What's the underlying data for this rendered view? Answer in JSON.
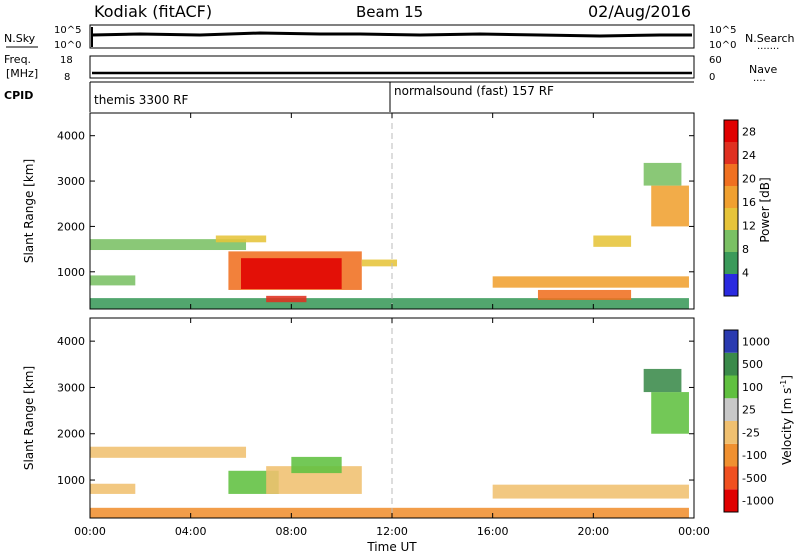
{
  "header": {
    "station": "Kodiak  (fitACF)",
    "beam": "Beam 15",
    "date": "02/Aug/2016"
  },
  "panels": {
    "nsky": {
      "left_label": "N.Sky",
      "ticks": [
        "10^5",
        "10^0"
      ],
      "right_ticks": [
        "10^5",
        "10^0"
      ],
      "right_label": "N.Search"
    },
    "freq": {
      "left_label_top": "Freq.",
      "left_label_bottom": "[MHz]",
      "ticks": [
        "18",
        "8"
      ],
      "right_ticks": [
        "60",
        "0"
      ],
      "right_label": "Nave"
    },
    "cpid": {
      "left_label": "CPID",
      "mode1": "themis 3300 RF",
      "mode2": "normalsound (fast) 157 RF"
    }
  },
  "colors": {
    "power": [
      "#2a2ae0",
      "#3a9a5a",
      "#7ac064",
      "#e6c43a",
      "#f0a030",
      "#f07020",
      "#e03020",
      "#e00000"
    ],
    "velocity": [
      "#e00000",
      "#f05020",
      "#f09030",
      "#f0c070",
      "#c8c8c8",
      "#60c040",
      "#3a8a4a",
      "#2a3ab0"
    ]
  },
  "chart_data": [
    {
      "type": "heatmap",
      "title": "",
      "xlabel": "",
      "ylabel": "Slant Range [km]",
      "xlim": [
        0,
        24
      ],
      "ylim": [
        180,
        4500
      ],
      "x_tick_labels": [
        "00:00",
        "04:00",
        "08:00",
        "12:00",
        "16:00",
        "20:00",
        "00:00"
      ],
      "y_tick_labels": [
        "1000",
        "2000",
        "3000",
        "4000"
      ],
      "colorbar": {
        "label": "Power [dB]",
        "tick_labels": [
          "4",
          "8",
          "12",
          "16",
          "20",
          "24",
          "28"
        ],
        "range": [
          0,
          30
        ]
      },
      "regions": [
        {
          "x": [
            0.0,
            23.8
          ],
          "y": [
            180,
            420
          ],
          "value": 6
        },
        {
          "x": [
            0.0,
            1.8
          ],
          "y": [
            700,
            920
          ],
          "value": 10
        },
        {
          "x": [
            0.0,
            6.2
          ],
          "y": [
            1480,
            1720
          ],
          "value": 11
        },
        {
          "x": [
            5.0,
            7.0
          ],
          "y": [
            1650,
            1800
          ],
          "value": 14
        },
        {
          "x": [
            5.5,
            10.8
          ],
          "y": [
            600,
            1450
          ],
          "value": 22
        },
        {
          "x": [
            6.0,
            10.0
          ],
          "y": [
            620,
            1300
          ],
          "value": 29
        },
        {
          "x": [
            7.0,
            8.6
          ],
          "y": [
            330,
            470
          ],
          "value": 26
        },
        {
          "x": [
            10.8,
            12.2
          ],
          "y": [
            1120,
            1270
          ],
          "value": 12
        },
        {
          "x": [
            16.0,
            23.8
          ],
          "y": [
            650,
            900
          ],
          "value": 16
        },
        {
          "x": [
            17.8,
            21.5
          ],
          "y": [
            380,
            600
          ],
          "value": 20
        },
        {
          "x": [
            20.0,
            21.5
          ],
          "y": [
            1550,
            1800
          ],
          "value": 12
        },
        {
          "x": [
            22.3,
            23.8
          ],
          "y": [
            2000,
            2900
          ],
          "value": 18
        },
        {
          "x": [
            22.0,
            23.5
          ],
          "y": [
            2900,
            3400
          ],
          "value": 10
        }
      ]
    },
    {
      "type": "heatmap",
      "title": "",
      "xlabel": "Time UT",
      "ylabel": "Slant Range [km]",
      "xlim": [
        0,
        24
      ],
      "ylim": [
        180,
        4500
      ],
      "x_tick_labels": [
        "00:00",
        "04:00",
        "08:00",
        "12:00",
        "16:00",
        "20:00",
        "00:00"
      ],
      "y_tick_labels": [
        "1000",
        "2000",
        "3000",
        "4000"
      ],
      "colorbar": {
        "label": "Velocity [m s^-1]",
        "tick_labels": [
          "1000",
          "500",
          "100",
          "25",
          "-25",
          "-100",
          "-500",
          "-1000"
        ]
      },
      "regions": [
        {
          "x": [
            0.0,
            23.8
          ],
          "y": [
            180,
            400
          ],
          "value": -60
        },
        {
          "x": [
            0.0,
            6.2
          ],
          "y": [
            1480,
            1720
          ],
          "value": 0
        },
        {
          "x": [
            0.0,
            1.8
          ],
          "y": [
            700,
            920
          ],
          "value": 0
        },
        {
          "x": [
            5.5,
            7.5
          ],
          "y": [
            700,
            1200
          ],
          "value": 150
        },
        {
          "x": [
            7.0,
            10.8
          ],
          "y": [
            700,
            1300
          ],
          "value": 0
        },
        {
          "x": [
            8.0,
            10.0
          ],
          "y": [
            1150,
            1500
          ],
          "value": 200
        },
        {
          "x": [
            16.0,
            23.8
          ],
          "y": [
            600,
            900
          ],
          "value": 0
        },
        {
          "x": [
            22.3,
            23.8
          ],
          "y": [
            2000,
            2900
          ],
          "value": 300
        },
        {
          "x": [
            22.0,
            23.5
          ],
          "y": [
            2900,
            3400
          ],
          "value": 800
        }
      ]
    }
  ]
}
